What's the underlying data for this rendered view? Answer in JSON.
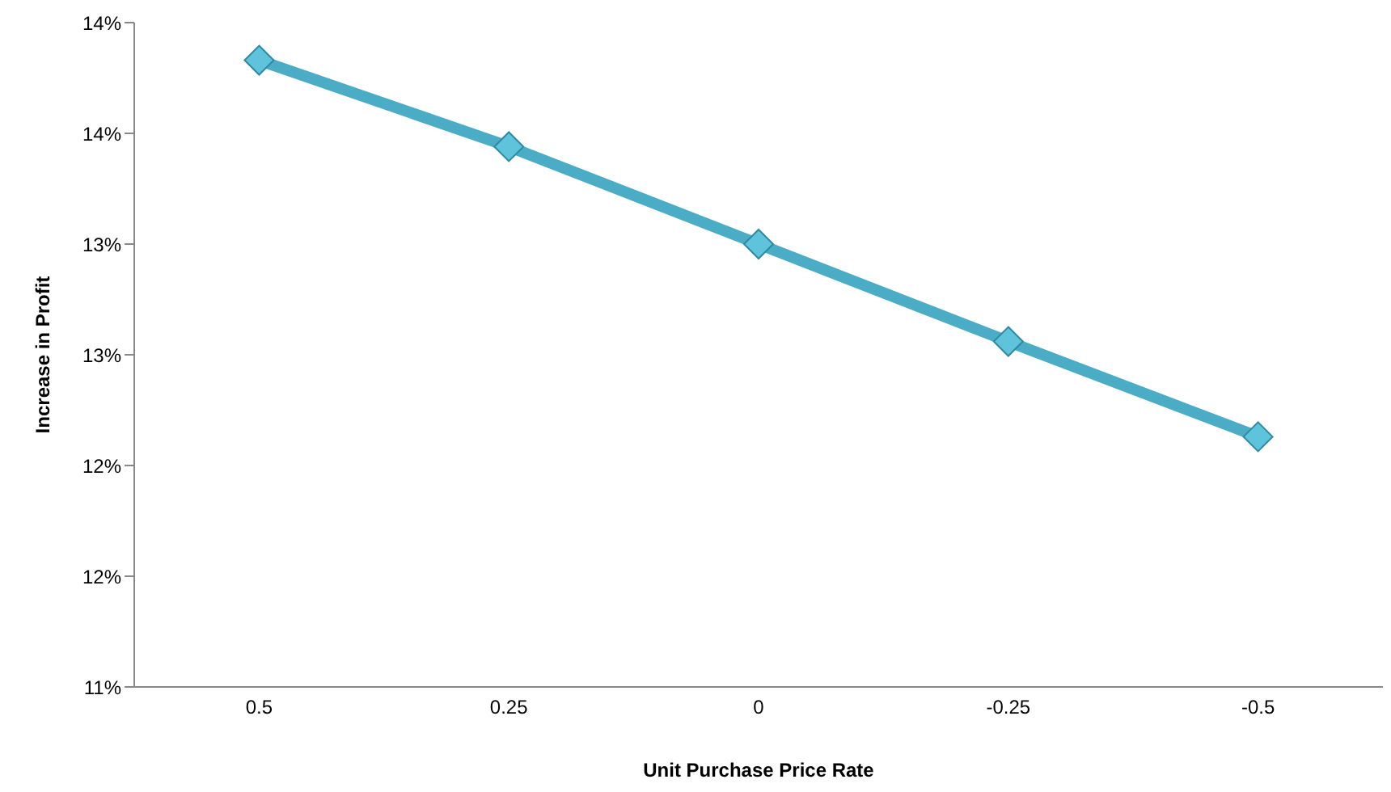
{
  "chart_data": {
    "type": "line",
    "xlabel": "Unit Purchase Price Rate",
    "ylabel": "Increase in Profit",
    "categories": [
      "0.5",
      "0.25",
      "0",
      "-0.25",
      "-0.5"
    ],
    "series": [
      {
        "color": "#4bacc6",
        "values": [
          13.83,
          13.44,
          13.0,
          12.56,
          12.13
        ]
      }
    ],
    "ylim": [
      11,
      14
    ],
    "yticks": [
      {
        "value": 11,
        "label": "11%"
      },
      {
        "value": 11.5,
        "label": "12%"
      },
      {
        "value": 12,
        "label": "12%"
      },
      {
        "value": 12.5,
        "label": "13%"
      },
      {
        "value": 13,
        "label": "13%"
      },
      {
        "value": 13.5,
        "label": "14%"
      },
      {
        "value": 14,
        "label": "14%"
      }
    ],
    "marker": "diamond",
    "line_style": "solid",
    "grid": false,
    "legend": false
  }
}
